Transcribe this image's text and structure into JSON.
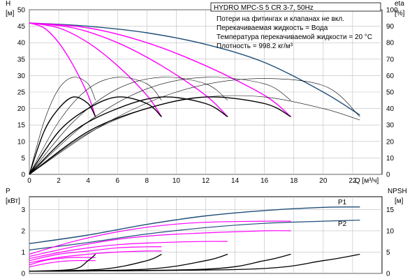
{
  "title": "HYDRO MPC-S 5 CR 3-7, 50Hz",
  "notes": [
    "Потери на фитингах и клапанах не вкл.",
    "Перекачиваемая жидкость = Вода",
    "Температура перекачиваемой жидкости = 20 °C",
    "Плотность = 998.2 кг/м³"
  ],
  "colors": {
    "pump": "#1f4e79",
    "system": "#ff00ff",
    "efficiency": "#000000",
    "grid": "#bdbdbd"
  },
  "chart_data": [
    {
      "id": "head_efficiency",
      "type": "line",
      "xlabel": "Q [м³/ч]",
      "y_left": {
        "label_top": "H",
        "label_unit": "[м]",
        "range": [
          0,
          50
        ],
        "ticks": [
          0,
          5,
          10,
          15,
          20,
          25,
          30,
          35,
          40,
          45,
          50
        ]
      },
      "y_right": {
        "label_top": "eta",
        "label_unit": "[%]",
        "range": [
          0,
          100
        ],
        "ticks": [
          0,
          10,
          20,
          30,
          40,
          50,
          60,
          70,
          80,
          90,
          100
        ]
      },
      "x_range": [
        0,
        24
      ],
      "x_ticks": [
        0,
        2,
        4,
        6,
        8,
        10,
        12,
        14,
        16,
        18,
        20,
        22
      ],
      "series": [
        {
          "kind": "pump_head",
          "x": [
            0,
            4,
            8,
            12,
            16,
            20,
            22.5
          ],
          "y": [
            46,
            45,
            43,
            39.5,
            34,
            25,
            18
          ]
        },
        {
          "kind": "system_head",
          "x": [
            0,
            1,
            2,
            3,
            4,
            4.5
          ],
          "y": [
            46,
            44.5,
            40,
            33,
            24,
            17.5
          ]
        },
        {
          "kind": "system_head",
          "x": [
            0,
            2,
            4,
            6,
            8,
            9
          ],
          "y": [
            46,
            44.5,
            40,
            33,
            24,
            17.5
          ]
        },
        {
          "kind": "system_head",
          "x": [
            0,
            3,
            6,
            9,
            12,
            13.5
          ],
          "y": [
            46,
            44.5,
            40,
            33,
            24,
            17.5
          ]
        },
        {
          "kind": "system_head",
          "x": [
            0,
            4,
            8,
            12,
            16,
            17.8
          ],
          "y": [
            46,
            44.5,
            40,
            33,
            24,
            17.5
          ]
        },
        {
          "kind": "efficiency",
          "x": [
            0,
            1,
            2,
            3,
            4,
            4.5
          ],
          "y": [
            0,
            26,
            40,
            47,
            43,
            35
          ]
        },
        {
          "kind": "efficiency",
          "x": [
            0,
            2,
            4,
            6,
            8,
            9
          ],
          "y": [
            0,
            26,
            40,
            47,
            43,
            35
          ]
        },
        {
          "kind": "efficiency",
          "x": [
            0,
            3,
            6,
            9,
            12,
            13.5
          ],
          "y": [
            0,
            26,
            40,
            47,
            43,
            35
          ]
        },
        {
          "kind": "efficiency",
          "x": [
            0,
            4,
            8,
            12,
            16,
            17.8
          ],
          "y": [
            0,
            26,
            40,
            47,
            43,
            35
          ]
        },
        {
          "kind": "efficiency_thin",
          "x": [
            0,
            1,
            2,
            3,
            4,
            4.5
          ],
          "y": [
            0,
            32,
            52,
            59,
            55,
            45
          ]
        },
        {
          "kind": "efficiency_thin",
          "x": [
            0,
            2,
            4,
            6,
            8,
            9
          ],
          "y": [
            0,
            32,
            52,
            59,
            55,
            45
          ]
        },
        {
          "kind": "efficiency_thin",
          "x": [
            0,
            3,
            6,
            9,
            12,
            13.5
          ],
          "y": [
            0,
            32,
            52,
            59,
            55,
            45
          ]
        },
        {
          "kind": "efficiency_thin",
          "x": [
            0,
            4,
            8,
            12,
            16,
            17.8
          ],
          "y": [
            0,
            32,
            52,
            59,
            55,
            45
          ]
        },
        {
          "kind": "efficiency_thin",
          "x": [
            0,
            5,
            10,
            15,
            20,
            22.5
          ],
          "y": [
            0,
            30,
            50,
            58,
            54,
            35
          ]
        },
        {
          "kind": "efficiency_thin",
          "x": [
            0,
            4,
            8,
            12,
            16,
            20,
            22.5
          ],
          "y": [
            0,
            25,
            40,
            47,
            47,
            40,
            33
          ]
        }
      ]
    },
    {
      "id": "power_npsh",
      "type": "line",
      "y_left": {
        "label_top": "P",
        "label_unit": "[кВт]",
        "range": [
          0,
          3.6
        ],
        "ticks": [
          0,
          1,
          2,
          3
        ]
      },
      "y_right": {
        "label_top": "NPSH",
        "label_unit": "[м]",
        "range": [
          0,
          18
        ],
        "ticks": [
          0,
          5,
          10,
          15
        ]
      },
      "x_range": [
        0,
        24
      ],
      "series": [
        {
          "name": "P1",
          "kind": "power_p1",
          "x": [
            0,
            4,
            8,
            12,
            16,
            20,
            22.5
          ],
          "y": [
            1.4,
            1.8,
            2.3,
            2.7,
            2.95,
            3.1,
            3.12
          ]
        },
        {
          "name": "P2",
          "kind": "power_p2",
          "x": [
            0,
            4,
            8,
            12,
            16,
            20,
            22.5
          ],
          "y": [
            1.1,
            1.45,
            1.85,
            2.15,
            2.35,
            2.45,
            2.5
          ]
        },
        {
          "kind": "power_system",
          "x": [
            0,
            3,
            6,
            9,
            12,
            16,
            17.8
          ],
          "y": [
            0.9,
            1.5,
            1.95,
            2.25,
            2.4,
            2.45,
            2.45
          ]
        },
        {
          "kind": "power_system",
          "x": [
            0,
            3,
            6,
            9,
            12,
            16,
            17.8
          ],
          "y": [
            0.8,
            1.25,
            1.6,
            1.8,
            1.9,
            2.0,
            2.0
          ]
        },
        {
          "kind": "power_system",
          "x": [
            0,
            3,
            6,
            9,
            12,
            13.5
          ],
          "y": [
            0.7,
            1.1,
            1.35,
            1.45,
            1.5,
            1.5
          ]
        },
        {
          "kind": "power_system",
          "x": [
            0,
            2,
            4,
            6,
            8,
            9
          ],
          "y": [
            0.6,
            0.9,
            1.05,
            1.2,
            1.25,
            1.25
          ]
        },
        {
          "kind": "power_system",
          "x": [
            0,
            2,
            4,
            6,
            8,
            9
          ],
          "y": [
            0.5,
            0.75,
            0.9,
            1.0,
            1.05,
            1.05
          ]
        },
        {
          "kind": "power_system",
          "x": [
            0,
            1,
            2,
            3,
            4,
            4.5
          ],
          "y": [
            0.4,
            0.6,
            0.7,
            0.75,
            0.75,
            0.75
          ]
        },
        {
          "kind": "power_system",
          "x": [
            0,
            1,
            2,
            3,
            4,
            4.5
          ],
          "y": [
            0.3,
            0.45,
            0.55,
            0.6,
            0.6,
            0.6
          ]
        },
        {
          "kind": "npsh",
          "x": [
            0,
            3,
            4,
            4.5
          ],
          "y": [
            0.5,
            1.0,
            3.0,
            4.5
          ]
        },
        {
          "kind": "npsh",
          "x": [
            0,
            5,
            8,
            9
          ],
          "y": [
            0.5,
            1.0,
            3.0,
            4.5
          ]
        },
        {
          "kind": "npsh",
          "x": [
            0,
            8,
            12,
            13.5
          ],
          "y": [
            0.5,
            1.0,
            3.0,
            4.5
          ]
        },
        {
          "kind": "npsh",
          "x": [
            0,
            12,
            16,
            17.8
          ],
          "y": [
            0.5,
            1.0,
            3.0,
            4.5
          ]
        },
        {
          "kind": "npsh",
          "x": [
            0,
            15,
            20,
            22.5
          ],
          "y": [
            0.5,
            1.0,
            3.0,
            4.5
          ]
        }
      ]
    }
  ]
}
